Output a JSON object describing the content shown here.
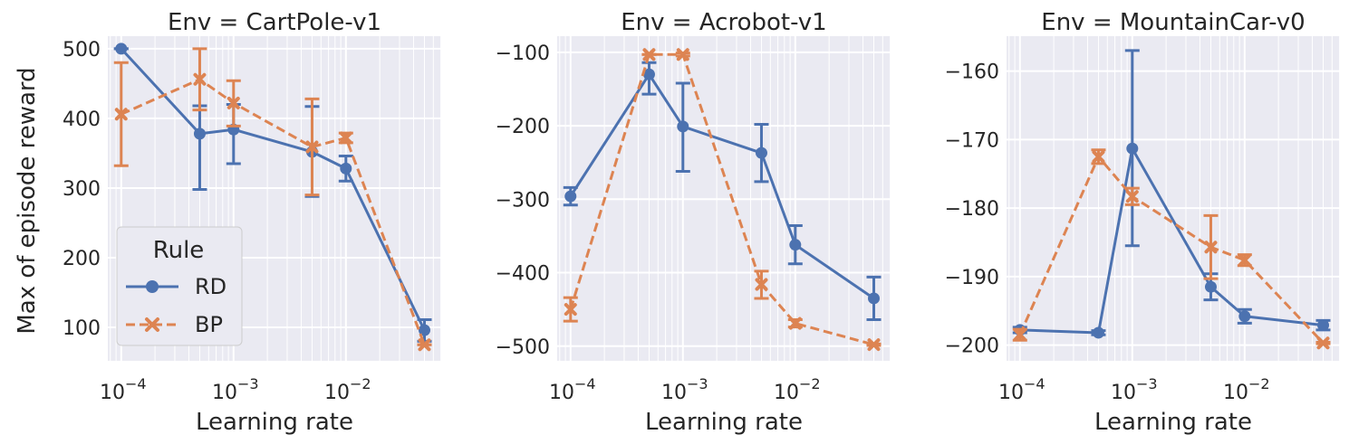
{
  "figure": {
    "ylabel": "Max of episode reward",
    "legend": {
      "title": "Rule",
      "entries": [
        {
          "name": "RD",
          "color": "#4c72b0",
          "marker": "circle",
          "dash": "solid"
        },
        {
          "name": "BP",
          "color": "#dd8452",
          "marker": "x",
          "dash": "dashed"
        }
      ]
    }
  },
  "chart_data": [
    {
      "type": "line",
      "title": "Env = CartPole-v1",
      "xlabel": "Learning rate",
      "xscale": "log",
      "x_tick_labels": [
        "10",
        "10",
        "10"
      ],
      "x_tick_exponents": [
        "−4",
        "−3",
        "−2"
      ],
      "y_tick_labels": [
        "100",
        "200",
        "300",
        "400",
        "500"
      ],
      "ylim": [
        52,
        518
      ],
      "x": [
        0.0001,
        0.0005,
        0.001,
        0.005,
        0.01,
        0.05
      ],
      "series": [
        {
          "name": "RD",
          "values": [
            500,
            378,
            384,
            352,
            328,
            96
          ],
          "err_low": [
            500,
            298,
            335,
            288,
            310,
            80
          ],
          "err_high": [
            500,
            418,
            420,
            417,
            346,
            111
          ]
        },
        {
          "name": "BP",
          "values": [
            406,
            456,
            422,
            359,
            372,
            75
          ],
          "err_low": [
            332,
            412,
            389,
            290,
            365,
            75
          ],
          "err_high": [
            480,
            500,
            454,
            428,
            379,
            75
          ]
        }
      ]
    },
    {
      "type": "line",
      "title": "Env = Acrobot-v1",
      "xlabel": "Learning rate",
      "xscale": "log",
      "x_tick_labels": [
        "10",
        "10",
        "10"
      ],
      "x_tick_exponents": [
        "−4",
        "−3",
        "−2"
      ],
      "y_tick_labels": [
        "−100",
        "−200",
        "−300",
        "−400",
        "−500"
      ],
      "ylim": [
        -520,
        -78
      ],
      "x": [
        0.0001,
        0.0005,
        0.001,
        0.005,
        0.01,
        0.05
      ],
      "series": [
        {
          "name": "RD",
          "values": [
            -296,
            -130,
            -201,
            -237,
            -362,
            -435
          ],
          "err_low": [
            -308,
            -157,
            -262,
            -276,
            -388,
            -464
          ],
          "err_high": [
            -284,
            -114,
            -142,
            -198,
            -336,
            -406
          ]
        },
        {
          "name": "BP",
          "values": [
            -450,
            -103,
            -103,
            -416,
            -469,
            -498
          ],
          "err_low": [
            -466,
            -103,
            -105,
            -435,
            -474,
            -499
          ],
          "err_high": [
            -434,
            -103,
            -101,
            -398,
            -464,
            -497
          ]
        }
      ]
    },
    {
      "type": "line",
      "title": "Env = MountainCar-v0",
      "xlabel": "Learning rate",
      "xscale": "log",
      "x_tick_labels": [
        "10",
        "10",
        "10"
      ],
      "x_tick_exponents": [
        "−4",
        "−3",
        "−2"
      ],
      "y_tick_labels": [
        "−160",
        "−170",
        "−180",
        "−190",
        "−200"
      ],
      "ylim": [
        -202.3,
        -154.9
      ],
      "x": [
        0.0001,
        0.0005,
        0.001,
        0.005,
        0.01,
        0.05
      ],
      "series": [
        {
          "name": "RD",
          "values": [
            -197.8,
            -198.2,
            -171.3,
            -191.5,
            -195.8,
            -197.1
          ],
          "err_low": [
            -198.2,
            -198.5,
            -185.5,
            -193.4,
            -196.8,
            -197.8
          ],
          "err_high": [
            -197.4,
            -197.9,
            -157.0,
            -189.6,
            -194.8,
            -196.4
          ]
        },
        {
          "name": "BP",
          "values": [
            -198.5,
            -172.5,
            -178.3,
            -185.7,
            -187.6,
            -199.7
          ],
          "err_low": [
            -199.3,
            -173.5,
            -179.5,
            -190.3,
            -188.4,
            -199.8
          ],
          "err_high": [
            -197.7,
            -171.5,
            -177.1,
            -181.1,
            -186.8,
            -199.6
          ]
        }
      ]
    }
  ]
}
